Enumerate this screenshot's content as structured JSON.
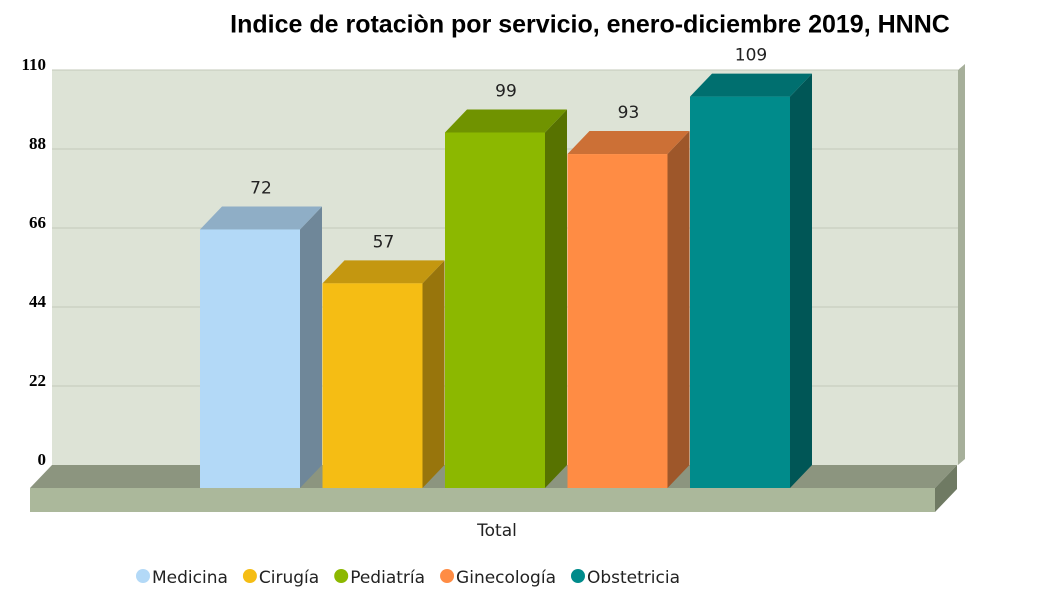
{
  "chart_data": {
    "type": "bar3d",
    "title": "Indice de rotaciòn por servicio, enero-diciembre 2019, HNNC",
    "categories": [
      "Total"
    ],
    "series": [
      {
        "name": "Medicina",
        "color": "#b3d9f7",
        "values": [
          72
        ]
      },
      {
        "name": "Cirugía",
        "color": "#f5bd14",
        "values": [
          57
        ]
      },
      {
        "name": "Pediatría",
        "color": "#8cb800",
        "values": [
          99
        ]
      },
      {
        "name": "Ginecología",
        "color": "#ff8c44",
        "values": [
          93
        ]
      },
      {
        "name": "Obstetricia",
        "color": "#008b8b",
        "values": [
          109
        ]
      }
    ],
    "ylim": [
      0,
      110
    ],
    "yticks": [
      0,
      22,
      44,
      66,
      88,
      110
    ],
    "grid": true
  }
}
